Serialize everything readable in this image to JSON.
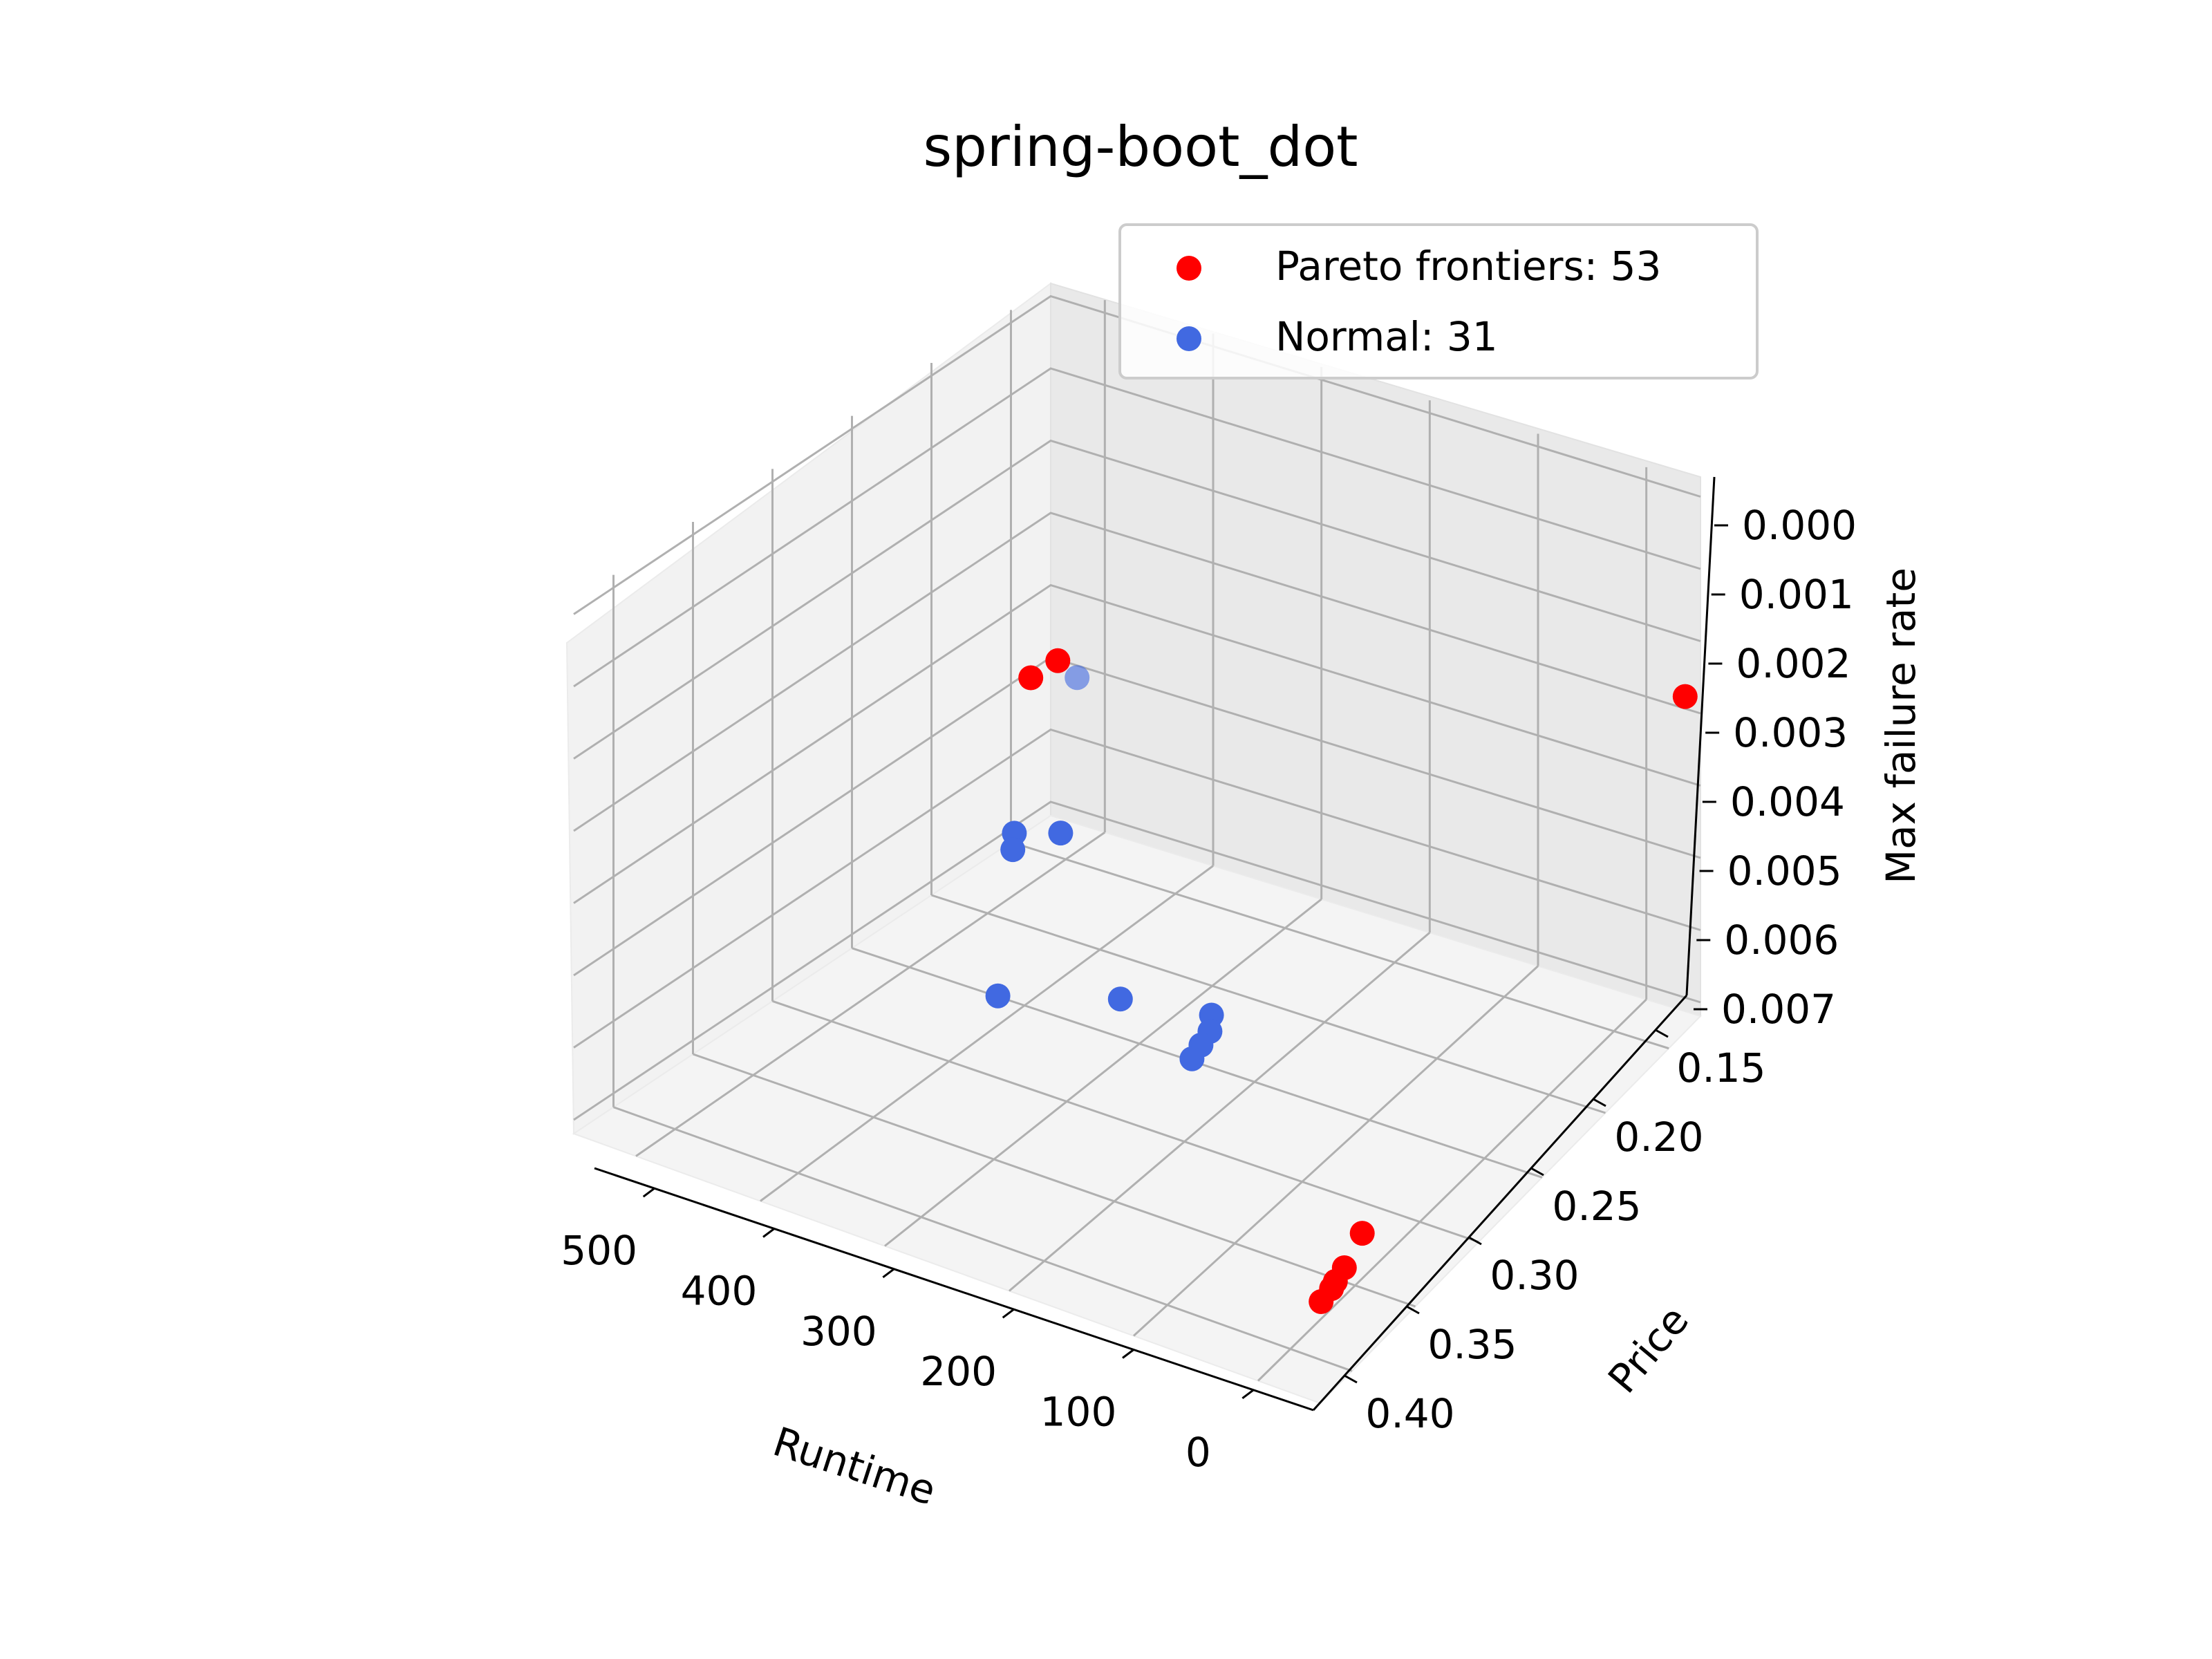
{
  "chart_data": {
    "type": "scatter",
    "projection": "3d",
    "title": "spring-boot_dot",
    "xlabel": "Runtime",
    "ylabel": "Price",
    "zlabel": "Max failure rate",
    "xticks": [
      "500",
      "400",
      "300",
      "200",
      "100",
      "0"
    ],
    "yticks": [
      "0.15",
      "0.20",
      "0.25",
      "0.30",
      "0.35",
      "0.40"
    ],
    "zticks": [
      "0.000",
      "0.001",
      "0.002",
      "0.003",
      "0.004",
      "0.005",
      "0.006",
      "0.007"
    ],
    "grid": true,
    "legend_position": "top-right",
    "series": [
      {
        "name": "Pareto frontiers: 53",
        "color": "#ff0000",
        "points": [
          {
            "runtime": 260,
            "price": 0.36,
            "max_failure_rate": 0.0
          },
          {
            "runtime": 330,
            "price": 0.28,
            "max_failure_rate": 0.0015
          },
          {
            "runtime": 20,
            "price": 0.18,
            "max_failure_rate": 0.0012
          },
          {
            "runtime": 60,
            "price": 0.34,
            "max_failure_rate": 0.0065
          },
          {
            "runtime": 50,
            "price": 0.36,
            "max_failure_rate": 0.0066
          },
          {
            "runtime": 45,
            "price": 0.37,
            "max_failure_rate": 0.0066
          },
          {
            "runtime": 42,
            "price": 0.375,
            "max_failure_rate": 0.0066
          },
          {
            "runtime": 38,
            "price": 0.385,
            "max_failure_rate": 0.0066
          }
        ]
      },
      {
        "name": "Normal: 31",
        "color": "#4169e1",
        "points": [
          {
            "runtime": 240,
            "price": 0.35,
            "max_failure_rate": 0.0
          },
          {
            "runtime": 260,
            "price": 0.37,
            "max_failure_rate": 0.002
          },
          {
            "runtime": 250,
            "price": 0.38,
            "max_failure_rate": 0.002
          },
          {
            "runtime": 240,
            "price": 0.36,
            "max_failure_rate": 0.002
          },
          {
            "runtime": 260,
            "price": 0.38,
            "max_failure_rate": 0.0041
          },
          {
            "runtime": 200,
            "price": 0.36,
            "max_failure_rate": 0.004
          },
          {
            "runtime": 150,
            "price": 0.35,
            "max_failure_rate": 0.004
          },
          {
            "runtime": 140,
            "price": 0.36,
            "max_failure_rate": 0.004
          },
          {
            "runtime": 135,
            "price": 0.37,
            "max_failure_rate": 0.004
          },
          {
            "runtime": 130,
            "price": 0.38,
            "max_failure_rate": 0.004
          }
        ]
      }
    ]
  }
}
